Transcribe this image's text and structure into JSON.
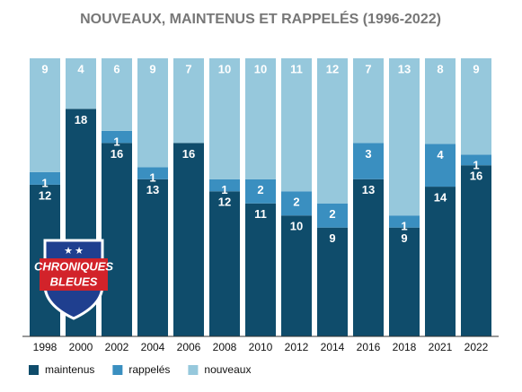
{
  "chart_data": {
    "type": "stacked-100-bar",
    "title": "NOUVEAUX, MAINTENUS ET RAPPELÉS (1996-2022)",
    "categories": [
      "1998",
      "2000",
      "2002",
      "2004",
      "2006",
      "2008",
      "2010",
      "2012",
      "2014",
      "2016",
      "2018",
      "2021",
      "2022"
    ],
    "series": [
      {
        "name": "maintenus",
        "color": "#0f4c6b",
        "values": [
          12,
          18,
          16,
          13,
          16,
          12,
          11,
          10,
          9,
          13,
          9,
          14,
          16
        ]
      },
      {
        "name": "rappelés",
        "color": "#3a8fc0",
        "values": [
          1,
          0,
          1,
          1,
          0,
          1,
          2,
          2,
          2,
          3,
          1,
          4,
          1
        ]
      },
      {
        "name": "nouveaux",
        "color": "#96c8dc",
        "values": [
          9,
          4,
          6,
          9,
          7,
          10,
          10,
          11,
          12,
          7,
          13,
          8,
          9
        ]
      }
    ],
    "legend": "bottom-left"
  },
  "logo": {
    "line1": "CHRONIQUES",
    "line2": "BLEUES"
  }
}
